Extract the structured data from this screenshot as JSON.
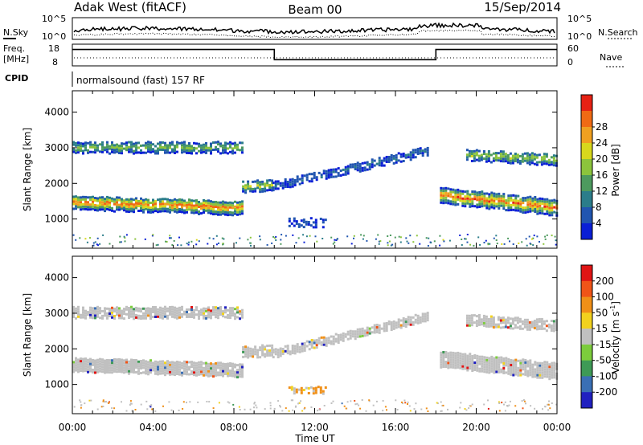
{
  "header": {
    "station": "Adak West (fitACF)",
    "beam": "Beam 00",
    "date": "15/Sep/2014"
  },
  "strip_labels": {
    "nsky": "N.Sky",
    "nsearch": "N.Search",
    "freq_line1": "Freq.",
    "freq_line2": "[MHz]",
    "nave": "Nave",
    "cpid": "CPID",
    "cpid_value": "normalsound (fast) 157 RF",
    "noise_top_label": "10^5",
    "noise_bottom_label": "10^0",
    "freq_top": "18",
    "freq_bottom": "8",
    "nave_top": "60",
    "nave_bottom": "0"
  },
  "axes": {
    "ylabel": "Slant Range [km]",
    "xlabel": "Time UT",
    "power_label": "Power [dB]",
    "velocity_label": "Velocity [m s",
    "velocity_label_exp": "-1",
    "velocity_label_end": "]"
  },
  "chart_data": [
    {
      "type": "heatmap",
      "name": "power",
      "x_ticks": [
        "00:00",
        "04:00",
        "08:00",
        "12:00",
        "16:00",
        "20:00",
        "00:00"
      ],
      "x_range_hours": [
        0,
        24
      ],
      "y_ticks": [
        1000,
        2000,
        3000,
        4000
      ],
      "y_range_km": [
        180,
        4600
      ],
      "colorbar_ticks": [
        "4",
        "8",
        "12",
        "16",
        "20",
        "24",
        "28"
      ],
      "colorbar_colors": [
        "#0a1fd6",
        "#2155b0",
        "#2b7d8a",
        "#4d9a5e",
        "#8cc43c",
        "#d8d81c",
        "#f0a020",
        "#f06a14",
        "#e62214"
      ],
      "bands": [
        {
          "t0": 0.0,
          "t1": 8.4,
          "r0": 1500,
          "r1": 1350,
          "thick": 380,
          "level": 0.85,
          "density": 0.9
        },
        {
          "t0": 8.4,
          "t1": 9.9,
          "r0": 1950,
          "r1": 2000,
          "thick": 300,
          "level": 0.6,
          "density": 0.8
        },
        {
          "t0": 0.0,
          "t1": 8.4,
          "r0": 3050,
          "r1": 3050,
          "thick": 300,
          "level": 0.5,
          "density": 0.8
        },
        {
          "t0": 9.9,
          "t1": 17.6,
          "r0": 1950,
          "r1": 2950,
          "thick": 220,
          "level": 0.22,
          "density": 0.75
        },
        {
          "t0": 18.2,
          "t1": 24.0,
          "r0": 1700,
          "r1": 1350,
          "thick": 420,
          "level": 0.85,
          "density": 0.9
        },
        {
          "t0": 19.5,
          "t1": 24.0,
          "r0": 2850,
          "r1": 2700,
          "thick": 320,
          "level": 0.55,
          "density": 0.75
        },
        {
          "t0": 10.7,
          "t1": 12.6,
          "r0": 950,
          "r1": 950,
          "thick": 250,
          "level": 0.12,
          "density": 0.5
        }
      ]
    },
    {
      "type": "heatmap",
      "name": "velocity",
      "x_ticks": [
        "00:00",
        "04:00",
        "08:00",
        "12:00",
        "16:00",
        "20:00",
        "00:00"
      ],
      "x_range_hours": [
        0,
        24
      ],
      "y_ticks": [
        1000,
        2000,
        3000,
        4000
      ],
      "y_range_km": [
        180,
        4600
      ],
      "colorbar_ticks": [
        "200",
        "100",
        "50",
        "15",
        "-15",
        "-50",
        "-100",
        "-200"
      ],
      "colorbar_colors": [
        "#2020c0",
        "#3a6fb5",
        "#3e9a56",
        "#7ccc3c",
        "#c0c0c0",
        "#f2d21e",
        "#f09018",
        "#f05418",
        "#e01414"
      ],
      "bands": [
        {
          "t0": 0.0,
          "t1": 8.4,
          "r0": 1600,
          "r1": 1450,
          "thick": 380,
          "level": 0.5,
          "density": 0.95
        },
        {
          "t0": 8.4,
          "t1": 9.9,
          "r0": 1950,
          "r1": 2000,
          "thick": 300,
          "level": 0.5,
          "density": 0.85
        },
        {
          "t0": 0.0,
          "t1": 8.4,
          "r0": 3050,
          "r1": 3050,
          "thick": 280,
          "level": 0.5,
          "density": 0.85
        },
        {
          "t0": 9.9,
          "t1": 17.6,
          "r0": 1900,
          "r1": 2950,
          "thick": 220,
          "level": 0.5,
          "density": 0.85
        },
        {
          "t0": 18.2,
          "t1": 24.0,
          "r0": 1750,
          "r1": 1400,
          "thick": 420,
          "level": 0.5,
          "density": 0.95
        },
        {
          "t0": 19.5,
          "t1": 24.0,
          "r0": 2850,
          "r1": 2700,
          "thick": 300,
          "level": 0.5,
          "density": 0.8
        },
        {
          "t0": 10.7,
          "t1": 12.6,
          "r0": 900,
          "r1": 900,
          "thick": 200,
          "level": 0.78,
          "density": 0.7
        }
      ]
    },
    {
      "type": "line",
      "name": "transmit-frequency",
      "unit": "MHz",
      "y_range": [
        8,
        18
      ],
      "steps": [
        {
          "t0": 0.0,
          "t1": 10.0,
          "value": 16
        },
        {
          "t0": 10.0,
          "t1": 18.0,
          "value": 10.5
        },
        {
          "t0": 18.0,
          "t1": 24.0,
          "value": 16
        }
      ]
    }
  ]
}
